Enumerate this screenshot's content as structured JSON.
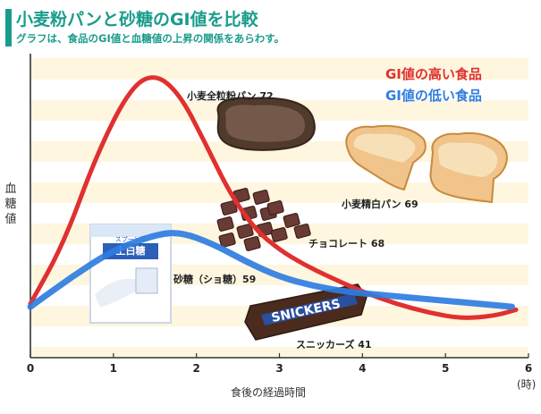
{
  "title": "小麦粉パンと砂糖のGI値を比較",
  "subtitle": "グラフは、食品のGI値と血糖値の上昇の関係をあらわす。",
  "legend": {
    "high": "GI値の高い食品",
    "low": "GI値の低い食品",
    "high_color": "#e03030",
    "low_color": "#2f7de1"
  },
  "foods": [
    {
      "label": "小麦全粒粉パン 72",
      "icon": "whole-wheat-bread-icon"
    },
    {
      "label": "小麦精白パン 69",
      "icon": "white-toast-icon"
    },
    {
      "label": "チョコレート 68",
      "icon": "chocolate-pieces-icon"
    },
    {
      "label": "砂糖（ショ糖）59",
      "icon": "sugar-bag-icon"
    },
    {
      "label": "スニッカーズ 41",
      "icon": "snickers-bar-icon"
    }
  ],
  "package": {
    "brand": "スプーン印",
    "product": "上白糖",
    "wrapper_text": "SNICKERS"
  },
  "chart_data": {
    "type": "line",
    "title": "小麦粉パンと砂糖のGI値を比較",
    "xlabel": "食後の経過時間",
    "x_unit": "(時)",
    "ylabel": "血糖値",
    "x_ticks": [
      "0",
      "1",
      "2",
      "3",
      "4",
      "5",
      "6"
    ],
    "xlim": [
      0,
      6
    ],
    "y_ticks": [],
    "ylim": [
      0,
      1
    ],
    "grid": "horizontal bands",
    "legend_position": "top-right",
    "series": [
      {
        "name": "GI値の高い食品",
        "color": "#e03030",
        "x": [
          0,
          0.4,
          0.8,
          1.2,
          1.5,
          1.8,
          2.1,
          2.4,
          2.7,
          3.0,
          3.3,
          3.6,
          4.0,
          4.4,
          4.8,
          5.2,
          5.6,
          5.85
        ],
        "y": [
          0.18,
          0.38,
          0.68,
          0.9,
          0.95,
          0.88,
          0.72,
          0.55,
          0.43,
          0.36,
          0.31,
          0.27,
          0.22,
          0.18,
          0.15,
          0.13,
          0.14,
          0.16
        ]
      },
      {
        "name": "GI値の低い食品",
        "color": "#2f7de1",
        "x": [
          0,
          0.5,
          1.0,
          1.5,
          1.8,
          2.2,
          2.6,
          3.0,
          3.4,
          3.8,
          4.2,
          4.6,
          5.0,
          5.4,
          5.8
        ],
        "y": [
          0.17,
          0.27,
          0.36,
          0.41,
          0.42,
          0.38,
          0.32,
          0.27,
          0.24,
          0.22,
          0.21,
          0.2,
          0.19,
          0.18,
          0.17
        ]
      }
    ]
  }
}
